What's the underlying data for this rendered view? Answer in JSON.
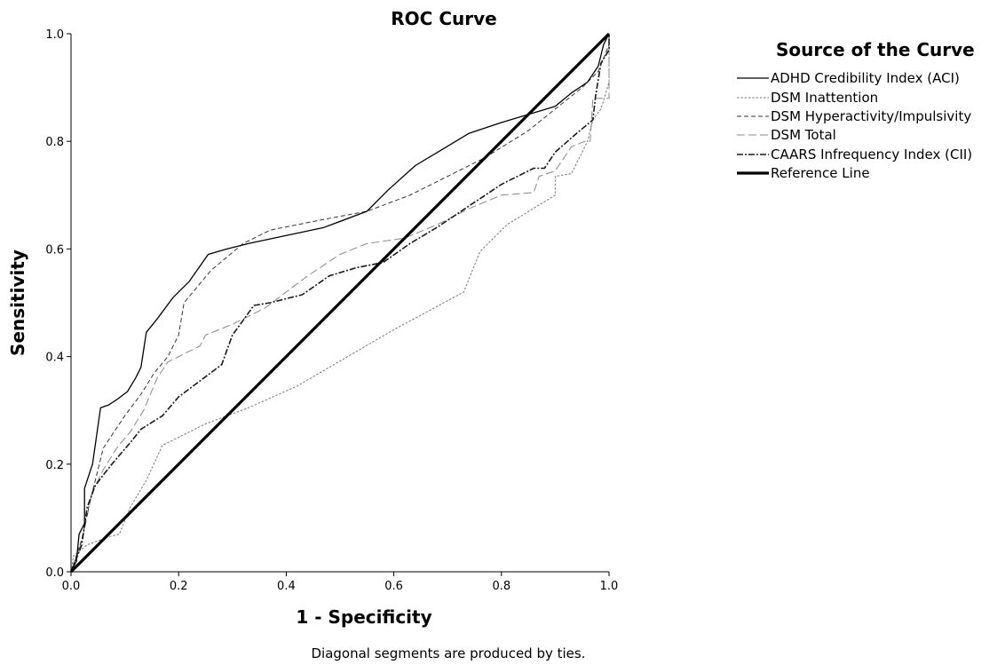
{
  "chart_data": {
    "type": "line",
    "title": "ROC Curve",
    "xlabel": "1 - Specificity",
    "ylabel": "Sensitivity",
    "xlim": [
      0.0,
      1.0
    ],
    "ylim": [
      0.0,
      1.0
    ],
    "x_ticks": [
      "0.0",
      "0.2",
      "0.4",
      "0.6",
      "0.8",
      "1.0"
    ],
    "y_ticks": [
      "0.0",
      "0.2",
      "0.4",
      "0.6",
      "0.8",
      "1.0"
    ],
    "grid": false,
    "legend": {
      "title": "Source of the Curve",
      "placement": "right"
    },
    "footnote": "Diagonal segments are produced by ties.",
    "series": [
      {
        "name": "ADHD Credibility Index (ACI)",
        "color": "#000000",
        "style": "solid",
        "points": [
          [
            0,
            0
          ],
          [
            0.01,
            0.02
          ],
          [
            0.015,
            0.07
          ],
          [
            0.025,
            0.09
          ],
          [
            0.025,
            0.155
          ],
          [
            0.04,
            0.2
          ],
          [
            0.055,
            0.305
          ],
          [
            0.07,
            0.31
          ],
          [
            0.085,
            0.32
          ],
          [
            0.105,
            0.335
          ],
          [
            0.12,
            0.36
          ],
          [
            0.13,
            0.38
          ],
          [
            0.14,
            0.445
          ],
          [
            0.16,
            0.47
          ],
          [
            0.19,
            0.51
          ],
          [
            0.22,
            0.54
          ],
          [
            0.255,
            0.59
          ],
          [
            0.29,
            0.6
          ],
          [
            0.33,
            0.61
          ],
          [
            0.47,
            0.64
          ],
          [
            0.55,
            0.67
          ],
          [
            0.59,
            0.71
          ],
          [
            0.64,
            0.755
          ],
          [
            0.69,
            0.785
          ],
          [
            0.74,
            0.815
          ],
          [
            0.8,
            0.835
          ],
          [
            0.85,
            0.85
          ],
          [
            0.9,
            0.865
          ],
          [
            0.93,
            0.89
          ],
          [
            0.96,
            0.91
          ],
          [
            0.98,
            0.94
          ],
          [
            0.99,
            0.98
          ],
          [
            1.0,
            1.0
          ]
        ]
      },
      {
        "name": "DSM Inattention",
        "color": "#777777",
        "style": "dotted",
        "points": [
          [
            0,
            0
          ],
          [
            0.005,
            0.03
          ],
          [
            0.03,
            0.05
          ],
          [
            0.07,
            0.065
          ],
          [
            0.09,
            0.07
          ],
          [
            0.11,
            0.12
          ],
          [
            0.14,
            0.17
          ],
          [
            0.17,
            0.235
          ],
          [
            0.25,
            0.275
          ],
          [
            0.33,
            0.305
          ],
          [
            0.42,
            0.345
          ],
          [
            0.6,
            0.45
          ],
          [
            0.73,
            0.52
          ],
          [
            0.76,
            0.595
          ],
          [
            0.81,
            0.645
          ],
          [
            0.9,
            0.7
          ],
          [
            0.9,
            0.735
          ],
          [
            0.93,
            0.74
          ],
          [
            0.96,
            0.8
          ],
          [
            0.97,
            0.84
          ],
          [
            0.985,
            0.86
          ],
          [
            1.0,
            0.91
          ],
          [
            1.0,
            1.0
          ]
        ]
      },
      {
        "name": "DSM Hyperactivity/Impulsivity",
        "color": "#333333",
        "style": "short-dash",
        "points": [
          [
            0,
            0
          ],
          [
            0.02,
            0.06
          ],
          [
            0.035,
            0.13
          ],
          [
            0.045,
            0.17
          ],
          [
            0.06,
            0.23
          ],
          [
            0.08,
            0.26
          ],
          [
            0.1,
            0.29
          ],
          [
            0.13,
            0.33
          ],
          [
            0.155,
            0.37
          ],
          [
            0.18,
            0.4
          ],
          [
            0.2,
            0.44
          ],
          [
            0.21,
            0.5
          ],
          [
            0.26,
            0.56
          ],
          [
            0.32,
            0.61
          ],
          [
            0.37,
            0.635
          ],
          [
            0.47,
            0.655
          ],
          [
            0.55,
            0.67
          ],
          [
            0.63,
            0.7
          ],
          [
            0.7,
            0.735
          ],
          [
            0.77,
            0.77
          ],
          [
            0.85,
            0.82
          ],
          [
            0.9,
            0.86
          ],
          [
            0.95,
            0.9
          ],
          [
            0.98,
            0.93
          ],
          [
            1.0,
            0.98
          ],
          [
            1.0,
            1.0
          ]
        ]
      },
      {
        "name": "DSM Total",
        "color": "#888888",
        "style": "long-dash",
        "points": [
          [
            0,
            0
          ],
          [
            0.015,
            0.04
          ],
          [
            0.025,
            0.08
          ],
          [
            0.04,
            0.15
          ],
          [
            0.06,
            0.19
          ],
          [
            0.085,
            0.23
          ],
          [
            0.11,
            0.26
          ],
          [
            0.135,
            0.3
          ],
          [
            0.16,
            0.36
          ],
          [
            0.18,
            0.39
          ],
          [
            0.24,
            0.42
          ],
          [
            0.25,
            0.44
          ],
          [
            0.3,
            0.46
          ],
          [
            0.36,
            0.49
          ],
          [
            0.44,
            0.55
          ],
          [
            0.5,
            0.59
          ],
          [
            0.55,
            0.61
          ],
          [
            0.62,
            0.62
          ],
          [
            0.68,
            0.645
          ],
          [
            0.74,
            0.675
          ],
          [
            0.8,
            0.7
          ],
          [
            0.86,
            0.705
          ],
          [
            0.87,
            0.735
          ],
          [
            0.9,
            0.745
          ],
          [
            0.93,
            0.79
          ],
          [
            0.955,
            0.8
          ],
          [
            0.965,
            0.8
          ],
          [
            0.97,
            0.88
          ],
          [
            1.0,
            0.88
          ],
          [
            1.0,
            1.0
          ]
        ]
      },
      {
        "name": "CAARS Infrequency Index (CII)",
        "color": "#1a1a1a",
        "style": "dash-dot",
        "points": [
          [
            0,
            0
          ],
          [
            0.02,
            0.05
          ],
          [
            0.03,
            0.12
          ],
          [
            0.045,
            0.16
          ],
          [
            0.06,
            0.18
          ],
          [
            0.08,
            0.205
          ],
          [
            0.11,
            0.24
          ],
          [
            0.13,
            0.265
          ],
          [
            0.17,
            0.29
          ],
          [
            0.2,
            0.325
          ],
          [
            0.24,
            0.355
          ],
          [
            0.26,
            0.37
          ],
          [
            0.28,
            0.385
          ],
          [
            0.3,
            0.44
          ],
          [
            0.34,
            0.495
          ],
          [
            0.37,
            0.5
          ],
          [
            0.43,
            0.515
          ],
          [
            0.48,
            0.55
          ],
          [
            0.53,
            0.565
          ],
          [
            0.58,
            0.575
          ],
          [
            0.63,
            0.61
          ],
          [
            0.68,
            0.64
          ],
          [
            0.74,
            0.68
          ],
          [
            0.8,
            0.72
          ],
          [
            0.86,
            0.75
          ],
          [
            0.88,
            0.75
          ],
          [
            0.9,
            0.78
          ],
          [
            0.94,
            0.815
          ],
          [
            0.97,
            0.84
          ],
          [
            0.975,
            0.885
          ],
          [
            0.985,
            0.945
          ],
          [
            1.0,
            0.97
          ],
          [
            1.0,
            1.0
          ]
        ]
      },
      {
        "name": "Reference Line",
        "color": "#000000",
        "style": "thick-solid",
        "points": [
          [
            0,
            0
          ],
          [
            1,
            1
          ]
        ]
      }
    ]
  }
}
